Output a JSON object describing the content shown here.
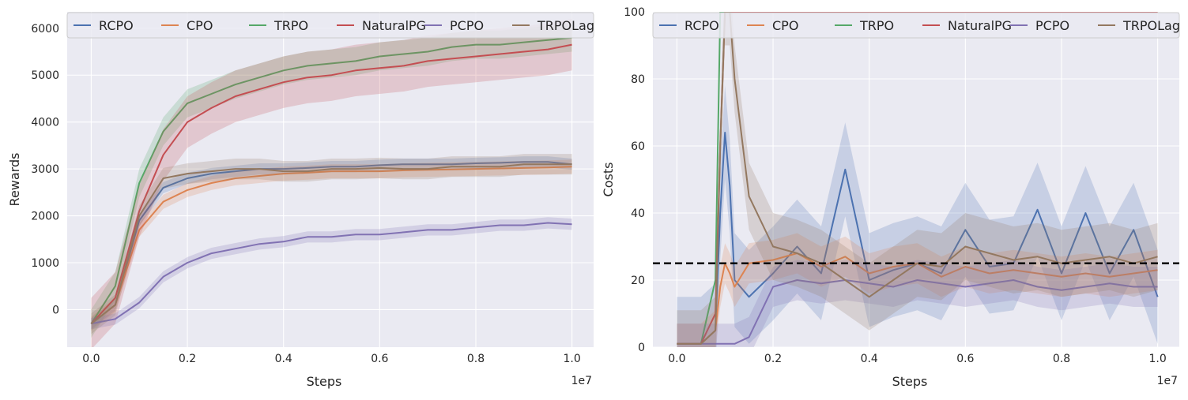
{
  "colors": {
    "RCPO": "#4c72b0",
    "CPO": "#dd8452",
    "TRPO": "#55a868",
    "NaturalPG": "#c44e52",
    "PCPO": "#8172b3",
    "TRPOLag": "#937860",
    "panel_bg": "#eaeaf2",
    "grid": "#ffffff",
    "threshold": "#000000"
  },
  "chart_data": [
    {
      "type": "line",
      "xlabel": "Steps",
      "ylabel": "Rewards",
      "x_multiplier": "1e7",
      "xlim": [
        -0.05,
        1.045
      ],
      "ylim": [
        -800,
        6350
      ],
      "xticks": [
        0.0,
        0.2,
        0.4,
        0.6,
        0.8,
        1.0
      ],
      "xtick_labels": [
        "0.0",
        "0.2",
        "0.4",
        "0.6",
        "0.8",
        "1.0"
      ],
      "yticks": [
        0,
        1000,
        2000,
        3000,
        4000,
        5000,
        6000
      ],
      "ytick_labels": [
        "0",
        "1000",
        "2000",
        "3000",
        "4000",
        "5000",
        "6000"
      ],
      "grid": true,
      "legend_position": "top",
      "legend": [
        "RCPO",
        "CPO",
        "TRPO",
        "NaturalPG",
        "PCPO",
        "TRPOLag"
      ],
      "x": [
        0.0,
        0.05,
        0.1,
        0.15,
        0.2,
        0.25,
        0.3,
        0.35,
        0.4,
        0.45,
        0.5,
        0.55,
        0.6,
        0.65,
        0.7,
        0.75,
        0.8,
        0.85,
        0.9,
        0.95,
        1.0
      ],
      "series": [
        {
          "name": "RCPO",
          "values": [
            -300,
            100,
            1900,
            2600,
            2800,
            2900,
            2950,
            3000,
            3000,
            3020,
            3050,
            3050,
            3080,
            3100,
            3100,
            3100,
            3120,
            3130,
            3150,
            3150,
            3100
          ],
          "band": 120
        },
        {
          "name": "CPO",
          "values": [
            -300,
            100,
            1700,
            2300,
            2550,
            2700,
            2800,
            2850,
            2900,
            2920,
            2950,
            2950,
            2950,
            2970,
            2980,
            2990,
            3000,
            3010,
            3020,
            3030,
            3050
          ],
          "band": 150
        },
        {
          "name": "TRPO",
          "values": [
            -300,
            500,
            2700,
            3800,
            4400,
            4600,
            4800,
            4950,
            5100,
            5200,
            5250,
            5300,
            5400,
            5450,
            5500,
            5600,
            5650,
            5650,
            5700,
            5750,
            5800
          ],
          "band": 300
        },
        {
          "name": "NaturalPG",
          "values": [
            -300,
            250,
            2100,
            3300,
            4000,
            4300,
            4550,
            4700,
            4850,
            4950,
            5000,
            5100,
            5150,
            5200,
            5300,
            5350,
            5400,
            5450,
            5500,
            5550,
            5650
          ],
          "band": 550
        },
        {
          "name": "PCPO",
          "values": [
            -300,
            -200,
            150,
            700,
            1000,
            1200,
            1300,
            1400,
            1450,
            1550,
            1550,
            1600,
            1600,
            1650,
            1700,
            1700,
            1750,
            1800,
            1800,
            1850,
            1820
          ],
          "band": 120
        },
        {
          "name": "TRPOLag",
          "values": [
            -300,
            100,
            2000,
            2800,
            2900,
            2950,
            3000,
            3000,
            2950,
            2950,
            3000,
            3000,
            3020,
            3000,
            3000,
            3050,
            3050,
            3050,
            3100,
            3100,
            3100
          ],
          "band": 220
        }
      ]
    },
    {
      "type": "line",
      "xlabel": "Steps",
      "ylabel": "Costs",
      "x_multiplier": "1e7",
      "xlim": [
        -0.05,
        1.045
      ],
      "ylim": [
        0,
        100
      ],
      "xticks": [
        0.0,
        0.2,
        0.4,
        0.6,
        0.8,
        1.0
      ],
      "xtick_labels": [
        "0.0",
        "0.2",
        "0.4",
        "0.6",
        "0.8",
        "1.0"
      ],
      "yticks": [
        0,
        20,
        40,
        60,
        80,
        100
      ],
      "ytick_labels": [
        "0",
        "20",
        "40",
        "60",
        "80",
        "100"
      ],
      "grid": true,
      "legend_position": "top",
      "legend": [
        "RCPO",
        "CPO",
        "TRPO",
        "NaturalPG",
        "PCPO",
        "TRPOLag"
      ],
      "threshold": 25,
      "x": [
        0.0,
        0.05,
        0.08,
        0.09,
        0.1,
        0.11,
        0.12,
        0.15,
        0.2,
        0.25,
        0.3,
        0.35,
        0.4,
        0.45,
        0.5,
        0.55,
        0.6,
        0.65,
        0.7,
        0.75,
        0.8,
        0.85,
        0.9,
        0.95,
        1.0
      ],
      "series": [
        {
          "name": "RCPO",
          "values": [
            1,
            1,
            5,
            40,
            64,
            48,
            20,
            15,
            22,
            30,
            22,
            53,
            20,
            23,
            25,
            22,
            35,
            24,
            25,
            41,
            22,
            40,
            22,
            35,
            15
          ],
          "band": 14
        },
        {
          "name": "CPO",
          "values": [
            1,
            1,
            5,
            18,
            25,
            22,
            18,
            25,
            26,
            28,
            24,
            27,
            22,
            24,
            25,
            21,
            24,
            22,
            23,
            22,
            21,
            22,
            21,
            22,
            23
          ],
          "band": 6
        },
        {
          "name": "TRPO",
          "values": [
            1,
            1,
            20,
            100,
            100,
            100,
            100,
            100,
            100,
            100,
            100,
            100,
            100,
            100,
            100,
            100,
            100,
            100,
            100,
            100,
            100,
            100,
            100,
            100,
            100
          ],
          "band": 0
        },
        {
          "name": "NaturalPG",
          "values": [
            1,
            1,
            10,
            60,
            100,
            100,
            100,
            100,
            100,
            100,
            100,
            100,
            100,
            100,
            100,
            100,
            100,
            100,
            100,
            100,
            100,
            100,
            100,
            100,
            100
          ],
          "band": 0
        },
        {
          "name": "PCPO",
          "values": [
            1,
            1,
            1,
            1,
            1,
            1,
            1,
            3,
            18,
            20,
            19,
            20,
            19,
            18,
            20,
            19,
            18,
            19,
            20,
            18,
            17,
            18,
            19,
            18,
            18
          ],
          "band": 6
        },
        {
          "name": "TRPOLag",
          "values": [
            1,
            1,
            5,
            60,
            100,
            100,
            80,
            45,
            30,
            28,
            25,
            20,
            15,
            20,
            25,
            24,
            30,
            28,
            26,
            27,
            25,
            26,
            27,
            25,
            27
          ],
          "band": 10
        }
      ]
    }
  ]
}
